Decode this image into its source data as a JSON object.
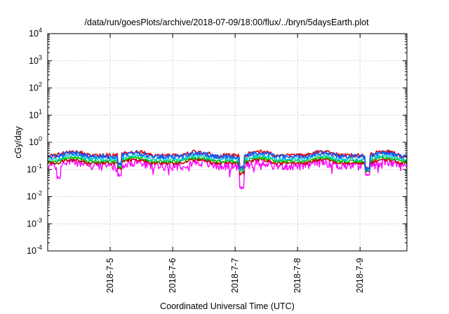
{
  "chart_data": {
    "type": "line",
    "title": "/data/run/goesPlots/archive/2018-07-09/18:00/flux/../bryn/5daysEarth.plot",
    "xlabel": "Coordinated Universal Time (UTC)",
    "ylabel": "cGy/day",
    "y_scale": "log",
    "ylim": [
      0.0001,
      10000
    ],
    "y_ticks": [
      {
        "base": "10",
        "exp": "-4",
        "value": 0.0001
      },
      {
        "base": "10",
        "exp": "-3",
        "value": 0.001
      },
      {
        "base": "10",
        "exp": "-2",
        "value": 0.01
      },
      {
        "base": "10",
        "exp": "-1",
        "value": 0.1
      },
      {
        "base": "10",
        "exp": "0",
        "value": 1
      },
      {
        "base": "10",
        "exp": "1",
        "value": 10
      },
      {
        "base": "10",
        "exp": "2",
        "value": 100
      },
      {
        "base": "10",
        "exp": "3",
        "value": 1000
      },
      {
        "base": "10",
        "exp": "4",
        "value": 10000
      }
    ],
    "x_range": [
      "2018-07-04 00:00",
      "2018-07-09 18:00"
    ],
    "x_ticks": [
      "2018-7-5",
      "2018-7-6",
      "2018-7-7",
      "2018-7-8",
      "2018-7-9"
    ],
    "grid": true,
    "series": [
      {
        "color": "#ff00ff",
        "base": 0.14,
        "variation": 0.35,
        "dips": [
          [
            0.03,
            0.05
          ],
          [
            0.2,
            0.06
          ],
          [
            0.54,
            0.02
          ],
          [
            0.89,
            0.06
          ]
        ]
      },
      {
        "color": "#c00000",
        "base": 0.17,
        "variation": 0.12,
        "dips": [
          [
            0.2,
            0.1
          ],
          [
            0.54,
            0.07
          ],
          [
            0.89,
            0.08
          ]
        ]
      },
      {
        "color": "#00c000",
        "base": 0.2,
        "variation": 0.12,
        "dips": [
          [
            0.2,
            0.12
          ],
          [
            0.54,
            0.09
          ],
          [
            0.89,
            0.09
          ]
        ]
      },
      {
        "color": "#00cccc",
        "base": 0.24,
        "variation": 0.14,
        "dips": [
          [
            0.2,
            0.14
          ],
          [
            0.54,
            0.1
          ],
          [
            0.89,
            0.1
          ]
        ]
      },
      {
        "color": "#e00000",
        "base": 0.33,
        "variation": 0.18,
        "dips": [
          [
            0.2,
            0.16
          ],
          [
            0.54,
            0.12
          ],
          [
            0.89,
            0.11
          ]
        ]
      },
      {
        "color": "#1060ff",
        "base": 0.3,
        "variation": 0.18,
        "dips": [
          [
            0.2,
            0.15
          ],
          [
            0.54,
            0.11
          ],
          [
            0.89,
            0.1
          ]
        ]
      }
    ]
  }
}
